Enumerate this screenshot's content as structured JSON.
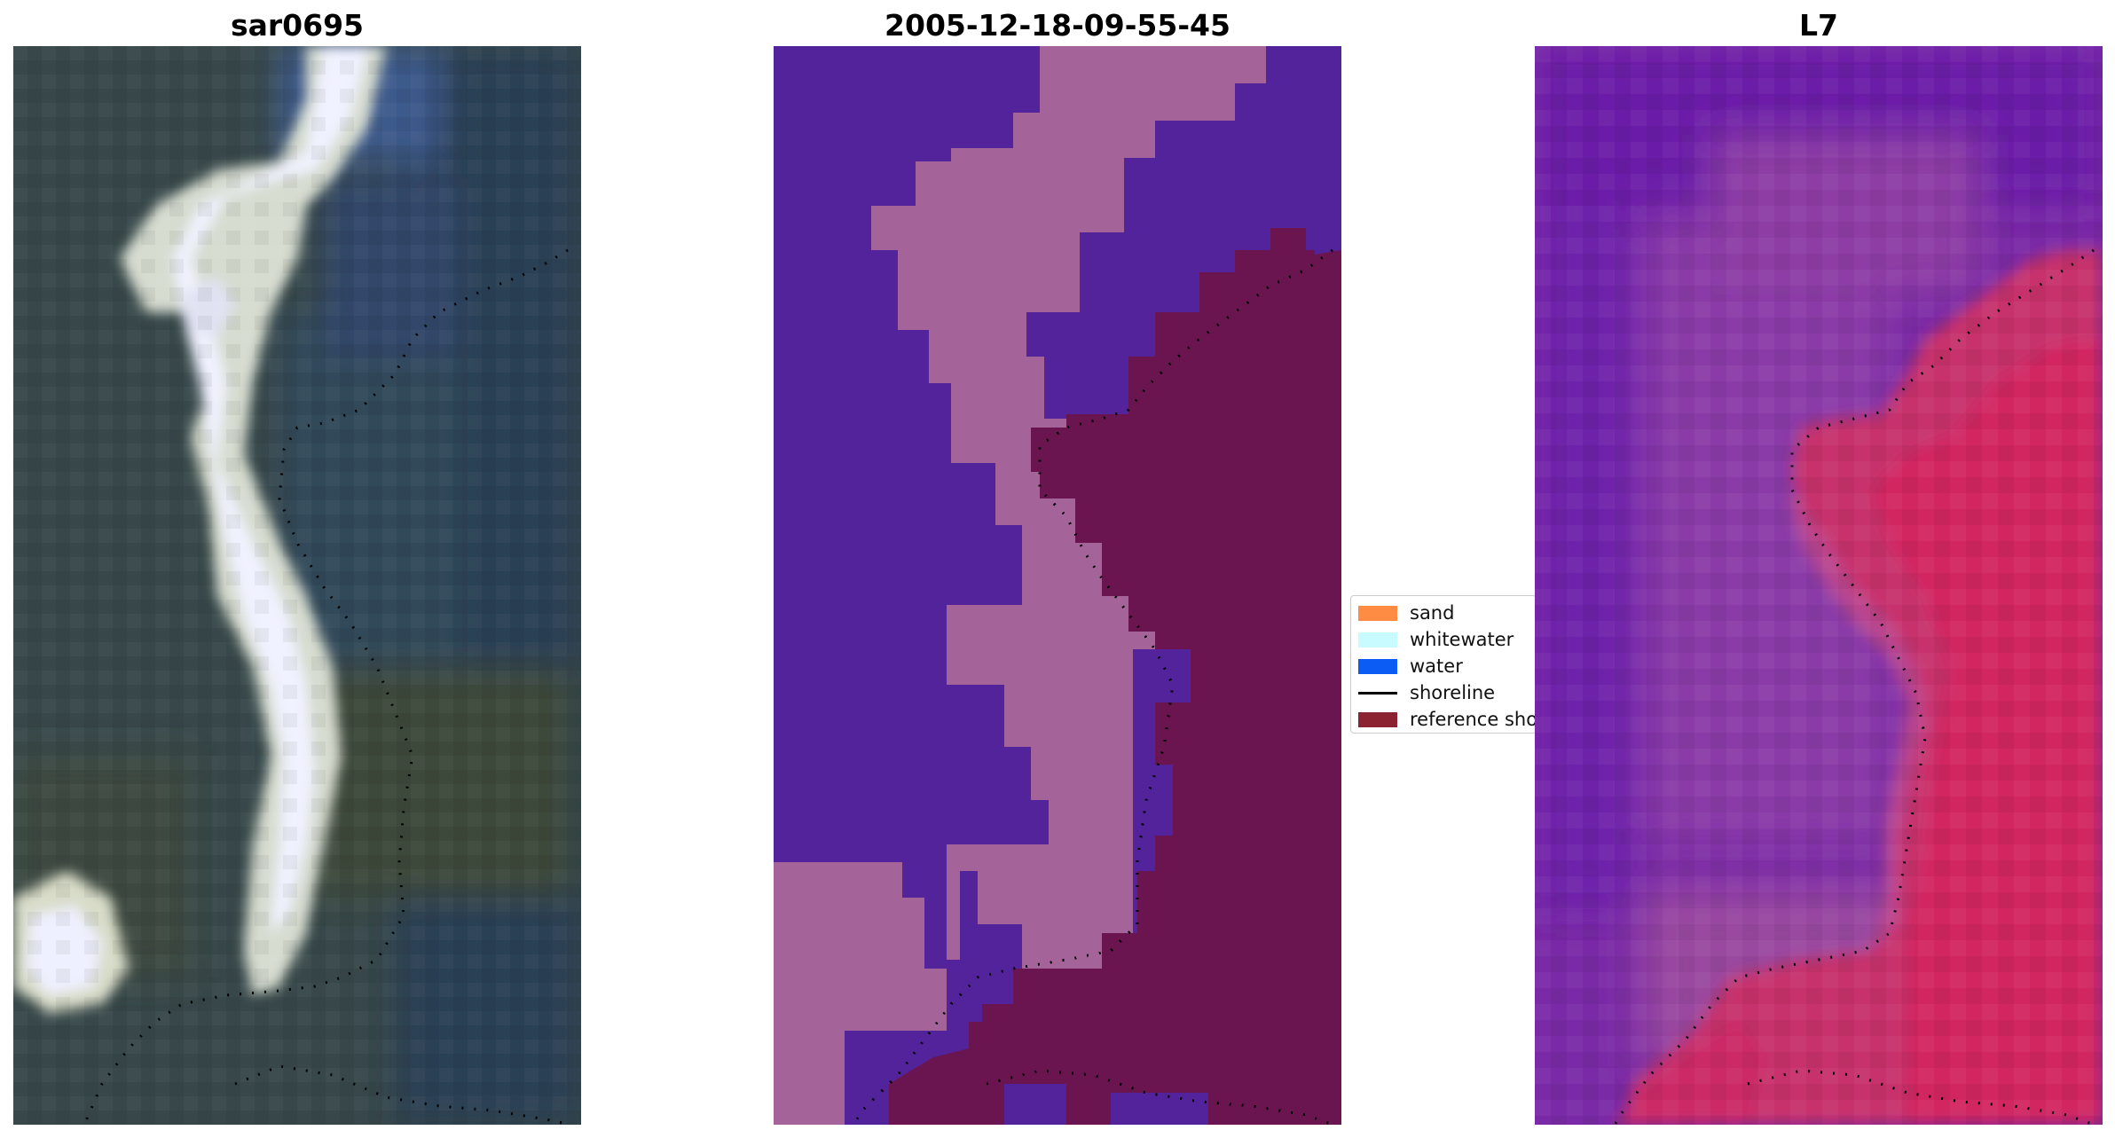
{
  "panels": {
    "rgb": {
      "title": "sar0695"
    },
    "classified": {
      "title": "2005-12-18-09-55-45"
    },
    "falsecolor": {
      "title": "L7"
    }
  },
  "legend": {
    "items": [
      {
        "label": "sand",
        "color": "#ff8c42",
        "kind": "patch"
      },
      {
        "label": "whitewater",
        "color": "#c8fbff",
        "kind": "patch"
      },
      {
        "label": "water",
        "color": "#0a5cf5",
        "kind": "patch"
      },
      {
        "label": "shoreline",
        "color": "#000000",
        "kind": "line"
      },
      {
        "label": "reference shoreline",
        "color": "#8b2232",
        "kind": "patch"
      }
    ]
  },
  "colors": {
    "rgb_background": "#3a4a4c",
    "rgb_whitewater": "#e6e8ff",
    "classified_water": "#52239a",
    "classified_sand_overlay": "#a4649a",
    "classified_reference": "#6a1550",
    "falsecolor_sea": "#7d2aa8",
    "falsecolor_land": "#cf2a63",
    "shoreline_dots": "#000000"
  }
}
